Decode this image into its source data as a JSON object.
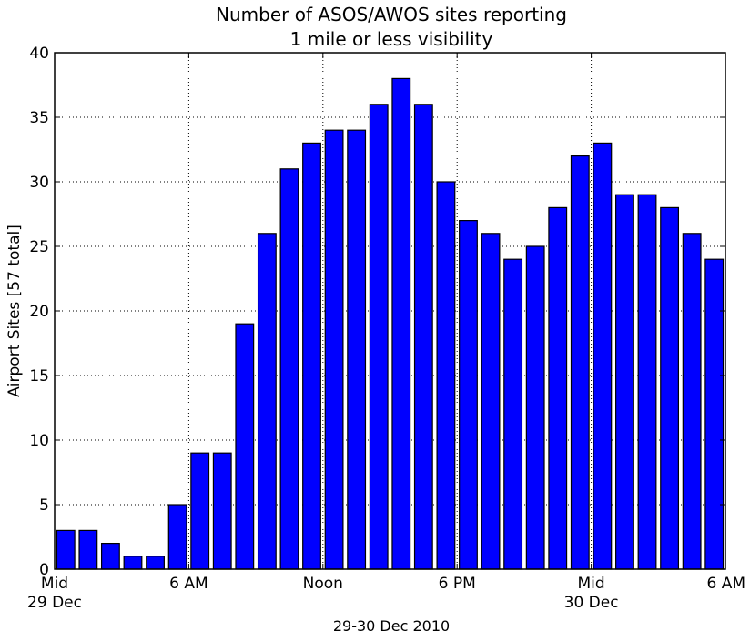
{
  "chart_data": {
    "type": "bar",
    "title_lines": [
      "Number of ASOS/AWOS sites reporting",
      "1 mile or less visibility"
    ],
    "xlabel": "29-30 Dec 2010",
    "ylabel": "Airport Sites [57 total]",
    "ylim": [
      0,
      40
    ],
    "yticks": [
      0,
      5,
      10,
      15,
      20,
      25,
      30,
      35,
      40
    ],
    "xlim_hours": [
      0,
      30
    ],
    "xticks": [
      {
        "hour": 0,
        "label": "Mid",
        "sublabel": "29 Dec"
      },
      {
        "hour": 6,
        "label": "6 AM",
        "sublabel": ""
      },
      {
        "hour": 12,
        "label": "Noon",
        "sublabel": ""
      },
      {
        "hour": 18,
        "label": "6 PM",
        "sublabel": ""
      },
      {
        "hour": 24,
        "label": "Mid",
        "sublabel": "30 Dec"
      },
      {
        "hour": 30,
        "label": "6 AM",
        "sublabel": ""
      }
    ],
    "hours": [
      0,
      1,
      2,
      3,
      4,
      5,
      6,
      7,
      8,
      9,
      10,
      11,
      12,
      13,
      14,
      15,
      16,
      17,
      18,
      19,
      20,
      21,
      22,
      23,
      24,
      25,
      26,
      27,
      28,
      29
    ],
    "values": [
      3,
      3,
      2,
      1,
      1,
      5,
      9,
      9,
      19,
      26,
      31,
      33,
      34,
      34,
      36,
      38,
      36,
      30,
      27,
      26,
      24,
      25,
      28,
      32,
      33,
      29,
      29,
      28,
      26,
      24
    ],
    "bar_color": "#0000ff",
    "grid": true
  }
}
